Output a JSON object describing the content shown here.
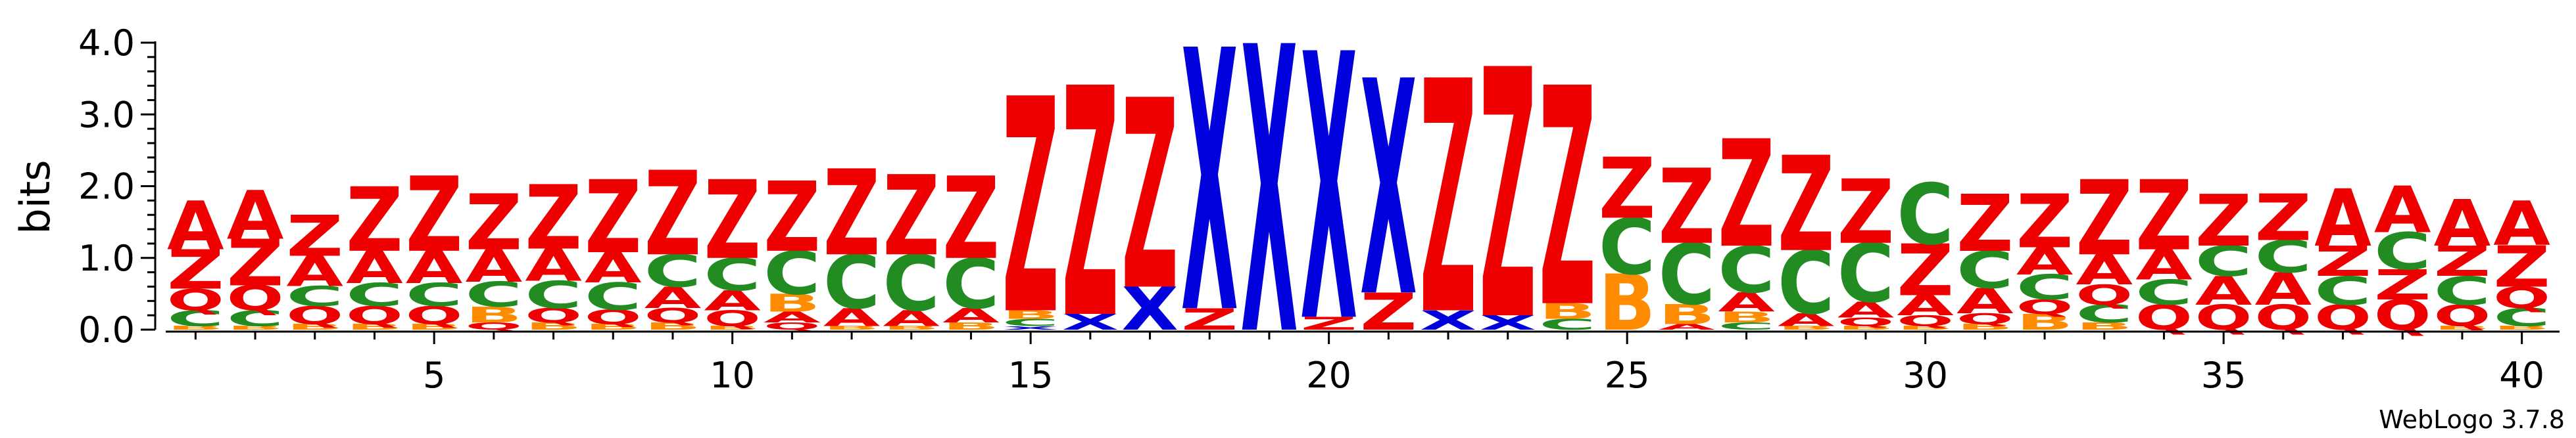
{
  "chart_data": {
    "type": "sequence-logo",
    "ylabel": "bits",
    "ylim": [
      0,
      4.0
    ],
    "yticks": [
      {
        "value": 0.0,
        "label": "0.0"
      },
      {
        "value": 1.0,
        "label": "1.0"
      },
      {
        "value": 2.0,
        "label": "2.0"
      },
      {
        "value": 3.0,
        "label": "3.0"
      },
      {
        "value": 4.0,
        "label": "4.0"
      }
    ],
    "xticks": [
      {
        "value": 5,
        "label": "5"
      },
      {
        "value": 10,
        "label": "10"
      },
      {
        "value": 15,
        "label": "15"
      },
      {
        "value": 20,
        "label": "20"
      },
      {
        "value": 25,
        "label": "25"
      },
      {
        "value": 30,
        "label": "30"
      },
      {
        "value": 35,
        "label": "35"
      },
      {
        "value": 40,
        "label": "40"
      }
    ],
    "xrange": [
      0.5,
      40.5
    ],
    "credit": "WebLogo 3.7.8",
    "colors": {
      "Z": "#ee0000",
      "A": "#ee0000",
      "Q": "#ee0000",
      "X": "#0000dd",
      "C": "#228b22",
      "B": "#ff8c00"
    },
    "positions": [
      {
        "pos": 1,
        "stack": [
          {
            "l": "B",
            "h": 0.05
          },
          {
            "l": "C",
            "h": 0.22
          },
          {
            "l": "Q",
            "h": 0.3
          },
          {
            "l": "Z",
            "h": 0.55
          },
          {
            "l": "A",
            "h": 0.68
          }
        ]
      },
      {
        "pos": 2,
        "stack": [
          {
            "l": "B",
            "h": 0.05
          },
          {
            "l": "C",
            "h": 0.22
          },
          {
            "l": "Q",
            "h": 0.35
          },
          {
            "l": "Z",
            "h": 0.65
          },
          {
            "l": "A",
            "h": 0.68
          }
        ]
      },
      {
        "pos": 3,
        "stack": [
          {
            "l": "B",
            "h": 0.08
          },
          {
            "l": "Q",
            "h": 0.25
          },
          {
            "l": "C",
            "h": 0.28
          },
          {
            "l": "A",
            "h": 0.42
          },
          {
            "l": "Z",
            "h": 0.57
          }
        ]
      },
      {
        "pos": 4,
        "stack": [
          {
            "l": "B",
            "h": 0.08
          },
          {
            "l": "Q",
            "h": 0.25
          },
          {
            "l": "C",
            "h": 0.32
          },
          {
            "l": "A",
            "h": 0.45
          },
          {
            "l": "Z",
            "h": 0.9
          }
        ]
      },
      {
        "pos": 5,
        "stack": [
          {
            "l": "B",
            "h": 0.08
          },
          {
            "l": "Q",
            "h": 0.25
          },
          {
            "l": "C",
            "h": 0.32
          },
          {
            "l": "A",
            "h": 0.45
          },
          {
            "l": "Z",
            "h": 1.05
          }
        ]
      },
      {
        "pos": 6,
        "stack": [
          {
            "l": "Q",
            "h": 0.1
          },
          {
            "l": "B",
            "h": 0.22
          },
          {
            "l": "C",
            "h": 0.35
          },
          {
            "l": "A",
            "h": 0.45
          },
          {
            "l": "Z",
            "h": 0.78
          }
        ]
      },
      {
        "pos": 7,
        "stack": [
          {
            "l": "B",
            "h": 0.1
          },
          {
            "l": "Q",
            "h": 0.2
          },
          {
            "l": "C",
            "h": 0.38
          },
          {
            "l": "A",
            "h": 0.45
          },
          {
            "l": "Z",
            "h": 0.9
          }
        ]
      },
      {
        "pos": 8,
        "stack": [
          {
            "l": "B",
            "h": 0.08
          },
          {
            "l": "Q",
            "h": 0.2
          },
          {
            "l": "C",
            "h": 0.38
          },
          {
            "l": "A",
            "h": 0.42
          },
          {
            "l": "Z",
            "h": 1.02
          }
        ]
      },
      {
        "pos": 9,
        "stack": [
          {
            "l": "B",
            "h": 0.1
          },
          {
            "l": "Q",
            "h": 0.2
          },
          {
            "l": "A",
            "h": 0.3
          },
          {
            "l": "C",
            "h": 0.45
          },
          {
            "l": "Z",
            "h": 1.18
          }
        ]
      },
      {
        "pos": 10,
        "stack": [
          {
            "l": "B",
            "h": 0.05
          },
          {
            "l": "Q",
            "h": 0.22
          },
          {
            "l": "A",
            "h": 0.28
          },
          {
            "l": "C",
            "h": 0.45
          },
          {
            "l": "Z",
            "h": 1.1
          }
        ]
      },
      {
        "pos": 11,
        "stack": [
          {
            "l": "Q",
            "h": 0.1
          },
          {
            "l": "A",
            "h": 0.15
          },
          {
            "l": "B",
            "h": 0.25
          },
          {
            "l": "C",
            "h": 0.6
          },
          {
            "l": "Z",
            "h": 0.98
          }
        ]
      },
      {
        "pos": 12,
        "stack": [
          {
            "l": "B",
            "h": 0.05
          },
          {
            "l": "A",
            "h": 0.25
          },
          {
            "l": "C",
            "h": 0.75
          },
          {
            "l": "Z",
            "h": 1.2
          }
        ]
      },
      {
        "pos": 13,
        "stack": [
          {
            "l": "B",
            "h": 0.05
          },
          {
            "l": "A",
            "h": 0.22
          },
          {
            "l": "C",
            "h": 0.78
          },
          {
            "l": "Z",
            "h": 1.12
          }
        ]
      },
      {
        "pos": 14,
        "stack": [
          {
            "l": "B",
            "h": 0.1
          },
          {
            "l": "A",
            "h": 0.2
          },
          {
            "l": "C",
            "h": 0.7
          },
          {
            "l": "Z",
            "h": 1.15
          }
        ]
      },
      {
        "pos": 15,
        "stack": [
          {
            "l": "X",
            "h": 0.05
          },
          {
            "l": "C",
            "h": 0.1
          },
          {
            "l": "B",
            "h": 0.12
          },
          {
            "l": "Z",
            "h": 3.0
          }
        ]
      },
      {
        "pos": 16,
        "stack": [
          {
            "l": "X",
            "h": 0.22
          },
          {
            "l": "Z",
            "h": 3.2
          }
        ]
      },
      {
        "pos": 17,
        "stack": [
          {
            "l": "X",
            "h": 0.6
          },
          {
            "l": "Z",
            "h": 2.65
          }
        ]
      },
      {
        "pos": 18,
        "stack": [
          {
            "l": "Z",
            "h": 0.3
          },
          {
            "l": "X",
            "h": 3.65
          }
        ]
      },
      {
        "pos": 19,
        "stack": [
          {
            "l": "X",
            "h": 4.0
          }
        ]
      },
      {
        "pos": 20,
        "stack": [
          {
            "l": "Z",
            "h": 0.18
          },
          {
            "l": "X",
            "h": 3.72
          }
        ]
      },
      {
        "pos": 21,
        "stack": [
          {
            "l": "Z",
            "h": 0.52
          },
          {
            "l": "X",
            "h": 3.0
          }
        ]
      },
      {
        "pos": 22,
        "stack": [
          {
            "l": "X",
            "h": 0.27
          },
          {
            "l": "Z",
            "h": 3.25
          }
        ]
      },
      {
        "pos": 23,
        "stack": [
          {
            "l": "X",
            "h": 0.2
          },
          {
            "l": "Z",
            "h": 3.48
          }
        ]
      },
      {
        "pos": 24,
        "stack": [
          {
            "l": "C",
            "h": 0.15
          },
          {
            "l": "B",
            "h": 0.22
          },
          {
            "l": "Z",
            "h": 3.05
          }
        ]
      },
      {
        "pos": 25,
        "stack": [
          {
            "l": "B",
            "h": 0.78
          },
          {
            "l": "C",
            "h": 0.78
          },
          {
            "l": "Z",
            "h": 0.85
          }
        ]
      },
      {
        "pos": 26,
        "stack": [
          {
            "l": "A",
            "h": 0.08
          },
          {
            "l": "B",
            "h": 0.28
          },
          {
            "l": "C",
            "h": 0.85
          },
          {
            "l": "Z",
            "h": 1.05
          }
        ]
      },
      {
        "pos": 27,
        "stack": [
          {
            "l": "C",
            "h": 0.1
          },
          {
            "l": "B",
            "h": 0.15
          },
          {
            "l": "A",
            "h": 0.27
          },
          {
            "l": "C",
            "h": 0.65
          },
          {
            "l": "Z",
            "h": 1.5
          }
        ]
      },
      {
        "pos": 28,
        "stack": [
          {
            "l": "B",
            "h": 0.05
          },
          {
            "l": "A",
            "h": 0.18
          },
          {
            "l": "C",
            "h": 0.88
          },
          {
            "l": "Z",
            "h": 1.33
          }
        ]
      },
      {
        "pos": 29,
        "stack": [
          {
            "l": "B",
            "h": 0.05
          },
          {
            "l": "Q",
            "h": 0.12
          },
          {
            "l": "A",
            "h": 0.22
          },
          {
            "l": "C",
            "h": 0.82
          },
          {
            "l": "Z",
            "h": 0.9
          }
        ]
      },
      {
        "pos": 30,
        "stack": [
          {
            "l": "B",
            "h": 0.05
          },
          {
            "l": "Q",
            "h": 0.15
          },
          {
            "l": "A",
            "h": 0.28
          },
          {
            "l": "Z",
            "h": 0.72
          },
          {
            "l": "C",
            "h": 0.85
          }
        ]
      },
      {
        "pos": 31,
        "stack": [
          {
            "l": "B",
            "h": 0.08
          },
          {
            "l": "Q",
            "h": 0.15
          },
          {
            "l": "A",
            "h": 0.35
          },
          {
            "l": "C",
            "h": 0.52
          },
          {
            "l": "Z",
            "h": 0.8
          }
        ]
      },
      {
        "pos": 32,
        "stack": [
          {
            "l": "B",
            "h": 0.22
          },
          {
            "l": "Q",
            "h": 0.2
          },
          {
            "l": "C",
            "h": 0.35
          },
          {
            "l": "A",
            "h": 0.38
          },
          {
            "l": "Z",
            "h": 0.75
          }
        ]
      },
      {
        "pos": 33,
        "stack": [
          {
            "l": "B",
            "h": 0.1
          },
          {
            "l": "C",
            "h": 0.25
          },
          {
            "l": "Q",
            "h": 0.28
          },
          {
            "l": "A",
            "h": 0.42
          },
          {
            "l": "Z",
            "h": 1.05
          }
        ]
      },
      {
        "pos": 34,
        "stack": [
          {
            "l": "Q",
            "h": 0.35
          },
          {
            "l": "C",
            "h": 0.35
          },
          {
            "l": "A",
            "h": 0.42
          },
          {
            "l": "Z",
            "h": 0.98
          }
        ]
      },
      {
        "pos": 35,
        "stack": [
          {
            "l": "Q",
            "h": 0.35
          },
          {
            "l": "A",
            "h": 0.4
          },
          {
            "l": "C",
            "h": 0.42
          },
          {
            "l": "Z",
            "h": 0.72
          }
        ]
      },
      {
        "pos": 36,
        "stack": [
          {
            "l": "Q",
            "h": 0.35
          },
          {
            "l": "A",
            "h": 0.45
          },
          {
            "l": "C",
            "h": 0.45
          },
          {
            "l": "Z",
            "h": 0.65
          }
        ]
      },
      {
        "pos": 37,
        "stack": [
          {
            "l": "Q",
            "h": 0.35
          },
          {
            "l": "C",
            "h": 0.4
          },
          {
            "l": "Z",
            "h": 0.42
          },
          {
            "l": "A",
            "h": 0.8
          }
        ]
      },
      {
        "pos": 38,
        "stack": [
          {
            "l": "Q",
            "h": 0.42
          },
          {
            "l": "Z",
            "h": 0.42
          },
          {
            "l": "C",
            "h": 0.52
          },
          {
            "l": "A",
            "h": 0.65
          }
        ]
      },
      {
        "pos": 39,
        "stack": [
          {
            "l": "B",
            "h": 0.05
          },
          {
            "l": "Q",
            "h": 0.3
          },
          {
            "l": "C",
            "h": 0.4
          },
          {
            "l": "Z",
            "h": 0.42
          },
          {
            "l": "A",
            "h": 0.65
          }
        ]
      },
      {
        "pos": 40,
        "stack": [
          {
            "l": "B",
            "h": 0.05
          },
          {
            "l": "C",
            "h": 0.25
          },
          {
            "l": "Q",
            "h": 0.3
          },
          {
            "l": "Z",
            "h": 0.58
          },
          {
            "l": "A",
            "h": 0.62
          }
        ]
      }
    ]
  }
}
